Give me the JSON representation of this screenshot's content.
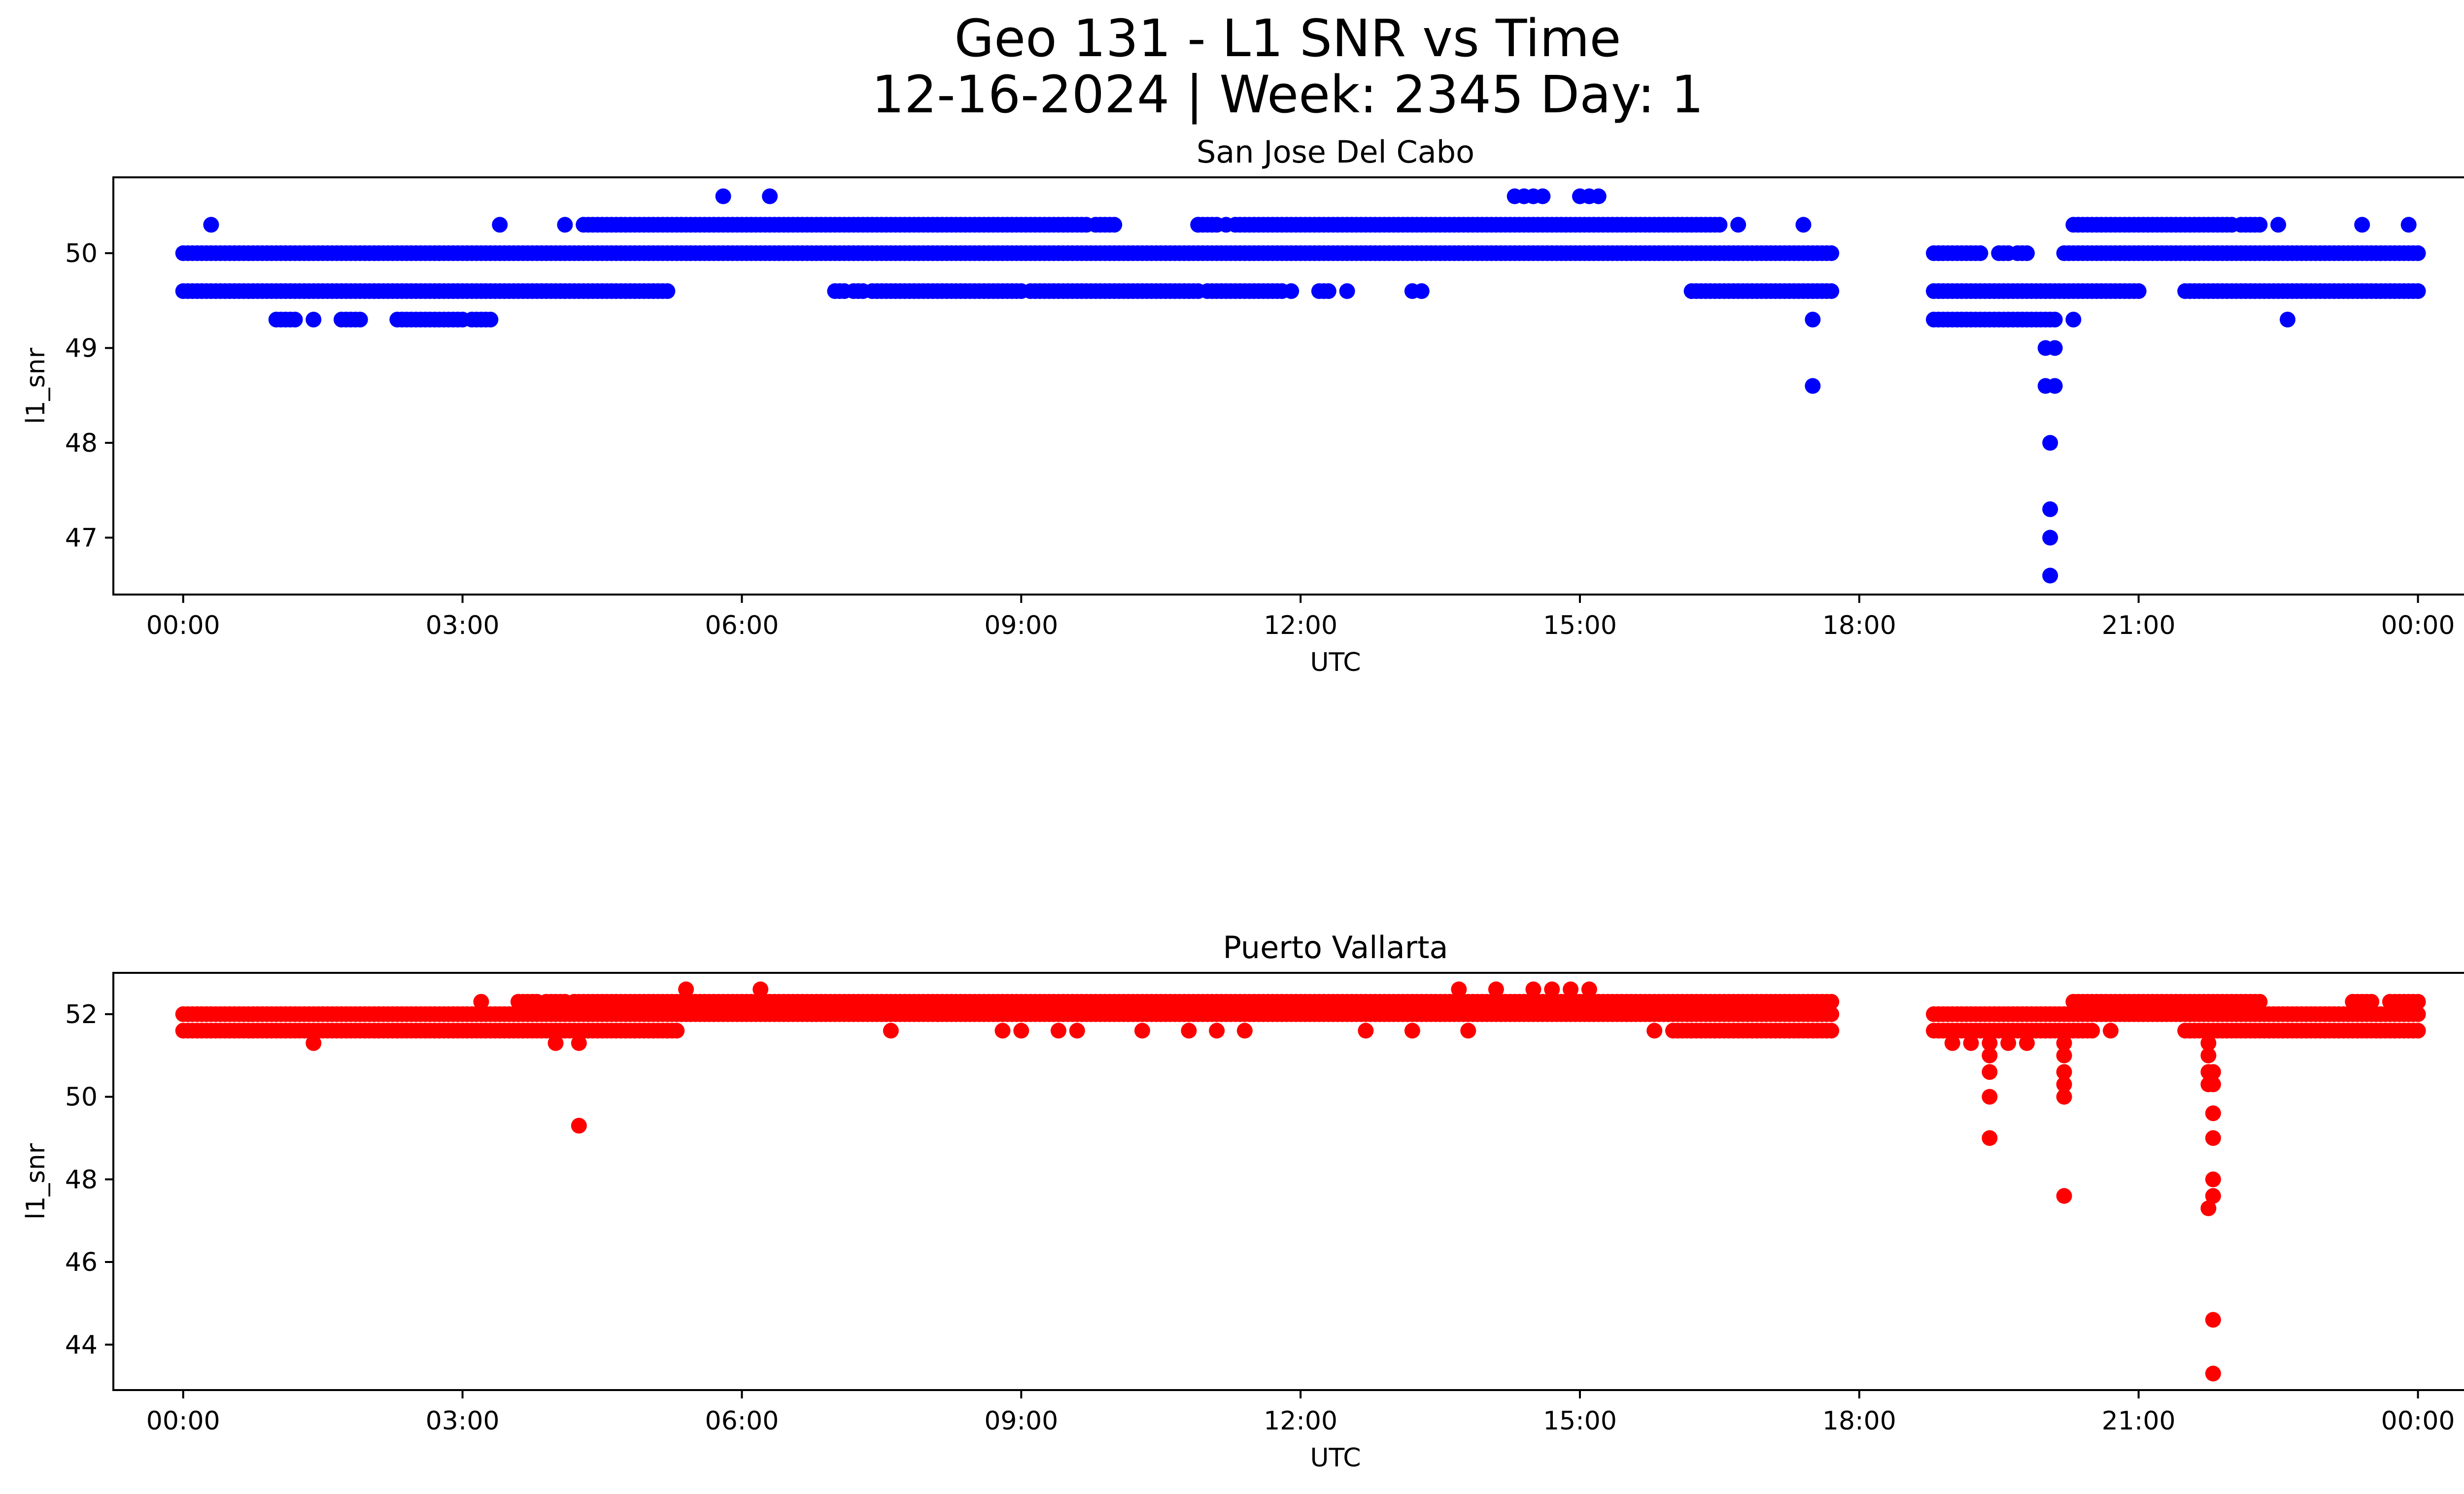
{
  "figure": {
    "title_line1": "Geo 131 - L1 SNR vs Time",
    "title_line2": "12-16-2024 | Week: 2345 Day: 1"
  },
  "chart_data": [
    {
      "type": "scatter",
      "title": "San Jose Del Cabo",
      "xlabel": "UTC",
      "ylabel": "l1_snr",
      "color": "#0000ff",
      "xlim": [
        -0.75,
        25.5
      ],
      "ylim": [
        46.4,
        50.8
      ],
      "x_ticks": [
        0,
        3,
        6,
        9,
        12,
        15,
        18,
        21,
        24
      ],
      "x_tick_labels": [
        "00:00",
        "03:00",
        "06:00",
        "09:00",
        "12:00",
        "15:00",
        "18:00",
        "21:00",
        "00:00"
      ],
      "y_ticks": [
        47,
        48,
        49,
        50
      ],
      "y_tick_labels": [
        "47",
        "48",
        "49",
        "50"
      ],
      "runs": [
        {
          "y": 50.0,
          "segments": [
            [
              0.0,
              17.7
            ],
            [
              18.8,
              19.3
            ],
            [
              19.5,
              19.6
            ],
            [
              19.7,
              19.8
            ],
            [
              20.2,
              24.0
            ]
          ],
          "step": 0.05
        },
        {
          "y": 49.6,
          "segments": [
            [
              0.0,
              5.2
            ],
            [
              7.0,
              7.1
            ],
            [
              7.2,
              7.3
            ],
            [
              7.4,
              9.0
            ],
            [
              9.1,
              10.9
            ],
            [
              11.0,
              11.8
            ],
            [
              12.2,
              12.3
            ],
            [
              16.2,
              17.7
            ],
            [
              18.8,
              21.0
            ],
            [
              21.5,
              24.0
            ]
          ],
          "step": 0.05
        },
        {
          "y": 50.3,
          "segments": [
            [
              4.3,
              9.7
            ],
            [
              9.8,
              10.0
            ],
            [
              10.9,
              11.1
            ],
            [
              11.3,
              16.5
            ],
            [
              20.3,
              22.0
            ],
            [
              22.1,
              22.3
            ]
          ],
          "step": 0.05
        },
        {
          "y": 49.3,
          "segments": [
            [
              1.0,
              1.2
            ],
            [
              1.7,
              1.9
            ],
            [
              2.3,
              3.0
            ],
            [
              3.1,
              3.3
            ],
            [
              18.8,
              20.1
            ]
          ],
          "step": 0.05
        }
      ],
      "points": [
        [
          0.3,
          50.3
        ],
        [
          3.4,
          50.3
        ],
        [
          4.1,
          50.3
        ],
        [
          10.9,
          50.3
        ],
        [
          11.2,
          50.3
        ],
        [
          16.7,
          50.3
        ],
        [
          17.4,
          50.3
        ],
        [
          22.5,
          50.3
        ],
        [
          23.4,
          50.3
        ],
        [
          23.9,
          50.3
        ],
        [
          5.8,
          50.6
        ],
        [
          6.3,
          50.6
        ],
        [
          14.3,
          50.6
        ],
        [
          14.4,
          50.6
        ],
        [
          14.5,
          50.6
        ],
        [
          14.6,
          50.6
        ],
        [
          15.0,
          50.6
        ],
        [
          15.1,
          50.6
        ],
        [
          15.2,
          50.6
        ],
        [
          1.4,
          49.3
        ],
        [
          17.5,
          49.3
        ],
        [
          20.3,
          49.3
        ],
        [
          22.6,
          49.3
        ],
        [
          17.5,
          48.6
        ],
        [
          20.0,
          49.0
        ],
        [
          20.1,
          49.0
        ],
        [
          20.0,
          48.6
        ],
        [
          20.1,
          48.6
        ],
        [
          20.05,
          48.0
        ],
        [
          20.05,
          47.3
        ],
        [
          20.05,
          47.0
        ],
        [
          20.05,
          46.6
        ],
        [
          13.2,
          49.6
        ],
        [
          13.3,
          49.6
        ],
        [
          12.5,
          49.6
        ],
        [
          11.9,
          49.6
        ]
      ]
    },
    {
      "type": "scatter",
      "title": "Puerto Vallarta",
      "xlabel": "UTC",
      "ylabel": "l1_snr",
      "color": "#ff0000",
      "xlim": [
        -0.75,
        25.5
      ],
      "ylim": [
        42.9,
        53.0
      ],
      "x_ticks": [
        0,
        3,
        6,
        9,
        12,
        15,
        18,
        21,
        24
      ],
      "x_tick_labels": [
        "00:00",
        "03:00",
        "06:00",
        "09:00",
        "12:00",
        "15:00",
        "18:00",
        "21:00",
        "00:00"
      ],
      "y_ticks": [
        44,
        46,
        48,
        50,
        52
      ],
      "y_tick_labels": [
        "44",
        "46",
        "48",
        "50",
        "52"
      ],
      "runs": [
        {
          "y": 52.0,
          "segments": [
            [
              0.0,
              17.7
            ],
            [
              18.8,
              24.0
            ]
          ],
          "step": 0.05
        },
        {
          "y": 51.6,
          "segments": [
            [
              0.0,
              5.2
            ],
            [
              5.2,
              5.3
            ],
            [
              16.0,
              17.7
            ],
            [
              18.8,
              20.5
            ],
            [
              21.5,
              24.0
            ]
          ],
          "step": 0.05
        },
        {
          "y": 52.3,
          "segments": [
            [
              3.6,
              3.8
            ],
            [
              3.9,
              4.1
            ],
            [
              4.2,
              17.7
            ],
            [
              20.3,
              22.3
            ],
            [
              23.3,
              23.5
            ],
            [
              23.7,
              24.0
            ]
          ],
          "step": 0.05
        }
      ],
      "points": [
        [
          5.4,
          52.6
        ],
        [
          6.2,
          52.6
        ],
        [
          13.7,
          52.6
        ],
        [
          14.1,
          52.6
        ],
        [
          14.5,
          52.6
        ],
        [
          14.7,
          52.6
        ],
        [
          14.9,
          52.6
        ],
        [
          15.1,
          52.6
        ],
        [
          3.2,
          52.3
        ],
        [
          1.4,
          51.3
        ],
        [
          4.0,
          51.3
        ],
        [
          4.25,
          51.3
        ],
        [
          4.25,
          49.3
        ],
        [
          7.6,
          51.6
        ],
        [
          8.8,
          51.6
        ],
        [
          9.0,
          51.6
        ],
        [
          9.4,
          51.6
        ],
        [
          9.6,
          51.6
        ],
        [
          10.3,
          51.6
        ],
        [
          10.8,
          51.6
        ],
        [
          11.1,
          51.6
        ],
        [
          11.4,
          51.6
        ],
        [
          12.7,
          51.6
        ],
        [
          13.2,
          51.6
        ],
        [
          13.8,
          51.6
        ],
        [
          15.8,
          51.6
        ],
        [
          20.7,
          51.6
        ],
        [
          19.0,
          51.3
        ],
        [
          19.2,
          51.3
        ],
        [
          19.4,
          51.3
        ],
        [
          19.6,
          51.3
        ],
        [
          19.8,
          51.3
        ],
        [
          20.2,
          51.3
        ],
        [
          19.4,
          51.0
        ],
        [
          19.4,
          50.6
        ],
        [
          19.4,
          50.0
        ],
        [
          19.4,
          49.0
        ],
        [
          20.2,
          51.0
        ],
        [
          20.2,
          50.6
        ],
        [
          20.2,
          50.3
        ],
        [
          20.2,
          50.0
        ],
        [
          20.2,
          47.6
        ],
        [
          21.75,
          51.3
        ],
        [
          21.75,
          51.0
        ],
        [
          21.75,
          50.6
        ],
        [
          21.75,
          50.3
        ],
        [
          21.8,
          50.6
        ],
        [
          21.8,
          50.3
        ],
        [
          21.8,
          49.6
        ],
        [
          21.8,
          49.0
        ],
        [
          21.8,
          48.0
        ],
        [
          21.8,
          47.6
        ],
        [
          21.75,
          47.3
        ],
        [
          21.8,
          44.6
        ],
        [
          21.8,
          43.3
        ]
      ]
    }
  ]
}
